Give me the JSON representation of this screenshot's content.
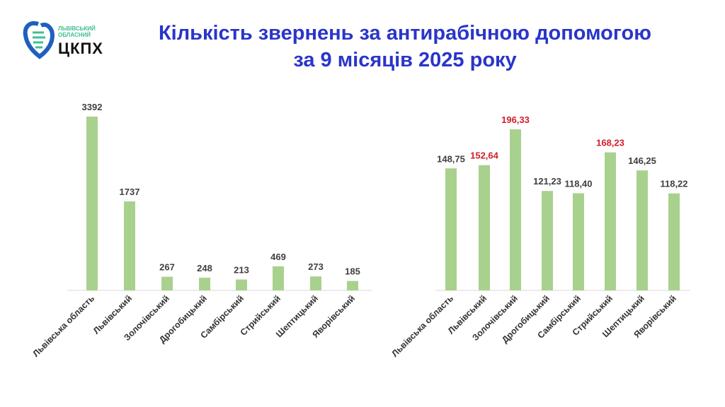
{
  "logo": {
    "line1": "ЛЬВІВСЬКИЙ",
    "line2": "ОБЛАСНИЙ",
    "main": "ЦКПХ"
  },
  "title": {
    "line1": "Кількість звернень за антирабічною допомогою",
    "line2": "за 9 місяців 2025 року"
  },
  "colors": {
    "bar": "#a9d18e",
    "label": "#404040",
    "highlight": "#d0202a",
    "title": "#2a35c9"
  },
  "chart_data": [
    {
      "type": "bar",
      "title": "",
      "categories": [
        "Львівська область",
        "Львівський",
        "Золочівський",
        "Дрогобицький",
        "Самбірський",
        "Стрийський",
        "Шептицький",
        "Яворівський"
      ],
      "values": [
        3392,
        1737,
        267,
        248,
        213,
        469,
        273,
        185
      ],
      "labels": [
        "3392",
        "1737",
        "267",
        "248",
        "213",
        "469",
        "273",
        "185"
      ],
      "highlight": [
        false,
        false,
        false,
        false,
        false,
        false,
        false,
        false
      ],
      "ylim": [
        0,
        3392
      ]
    },
    {
      "type": "bar",
      "title": "",
      "categories": [
        "Львівська область",
        "Львівський",
        "Золочівський",
        "Дрогобицький",
        "Самбірський",
        "Стрийський",
        "Шептицький",
        "Яворівський"
      ],
      "values": [
        148.75,
        152.64,
        196.33,
        121.23,
        118.4,
        168.23,
        146.25,
        118.22
      ],
      "labels": [
        "148,75",
        "152,64",
        "196,33",
        "121,23",
        "118,40",
        "168,23",
        "146,25",
        "118,22"
      ],
      "highlight": [
        false,
        true,
        true,
        false,
        false,
        true,
        false,
        false
      ],
      "ylim": [
        0,
        196.33
      ]
    }
  ]
}
